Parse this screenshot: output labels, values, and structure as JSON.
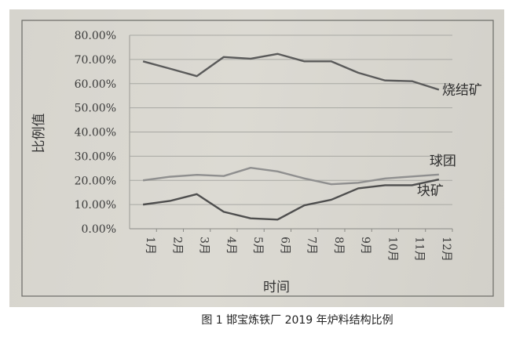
{
  "chart_data": {
    "type": "line",
    "title": "",
    "xlabel": "时间",
    "ylabel": "比例值",
    "ylim": [
      0,
      80
    ],
    "yticks": [
      "0.00%",
      "10.00%",
      "20.00%",
      "30.00%",
      "40.00%",
      "50.00%",
      "60.00%",
      "70.00%",
      "80.00%"
    ],
    "categories": [
      "1月",
      "2月",
      "3月",
      "4月",
      "5月",
      "6月",
      "7月",
      "8月",
      "9月",
      "10月",
      "11月",
      "12月"
    ],
    "grid": true,
    "legend": "inline-right",
    "series": [
      {
        "name": "烧结矿",
        "color": "#5a5a5a",
        "values": [
          69.2,
          66.2,
          63.1,
          71.0,
          70.3,
          72.3,
          69.2,
          69.2,
          64.5,
          61.3,
          61.0,
          57.5
        ]
      },
      {
        "name": "球团",
        "color": "#8f8f8f",
        "values": [
          20.0,
          21.5,
          22.3,
          21.8,
          25.2,
          23.7,
          20.8,
          18.4,
          19.0,
          20.8,
          21.6,
          22.4
        ]
      },
      {
        "name": "块矿",
        "color": "#4e4e4e",
        "values": [
          10.0,
          11.5,
          14.3,
          7.0,
          4.3,
          3.8,
          9.7,
          12.0,
          16.7,
          18.0,
          18.0,
          20.4
        ]
      }
    ]
  },
  "caption": "图 1    邯宝炼铁厂 2019 年炉料结构比例"
}
